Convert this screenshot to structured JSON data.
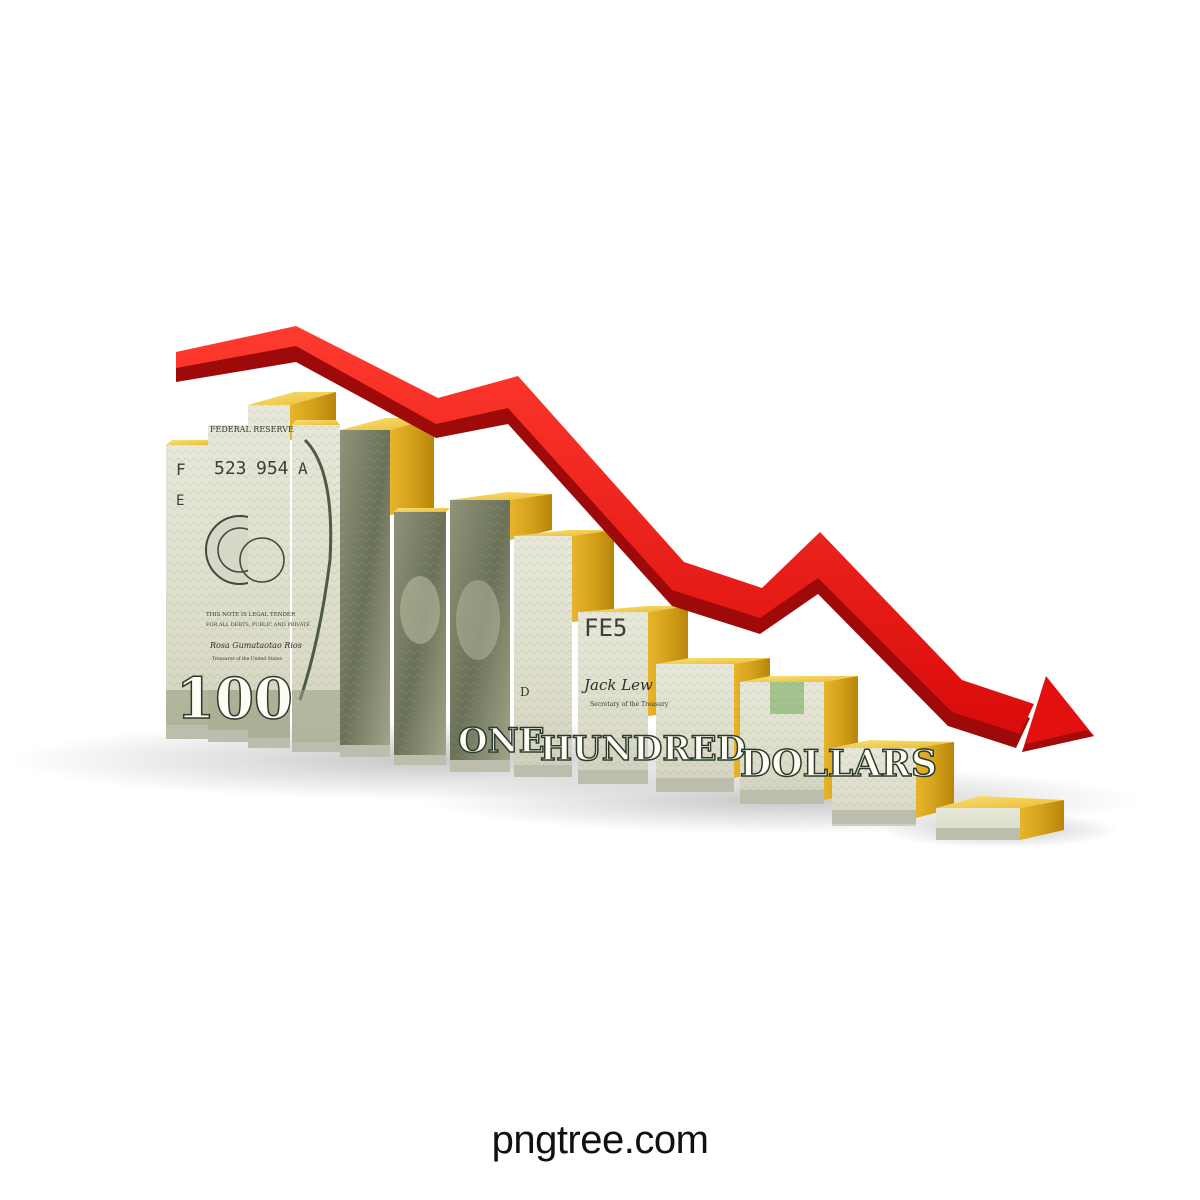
{
  "watermark": {
    "text": "pngtree.com"
  },
  "banknote": {
    "serial_fragments": [
      "F",
      "523",
      "954",
      "A",
      "FE5",
      "E"
    ],
    "reserve_text": "FEDERAL RESERVE",
    "tender_lines": [
      "THIS NOTE IS LEGAL TENDER",
      "FOR ALL DEBTS, PUBLIC AND PRIVATE"
    ],
    "denomination": "100",
    "words": [
      "ONE",
      "HUNDRED",
      "DOLLARS"
    ],
    "signatures": [
      "Rosa Gumataotao Rios",
      "Jack Lew"
    ],
    "secretary_label": "Secretary of the Treasury",
    "treasurer_label": "Treasurer of the United States",
    "district_letter": "D"
  },
  "colors": {
    "arrow": "#e01010",
    "arrow_shadow": "#a30a0a",
    "gold_top": "#f2cf4a",
    "gold_side": "#c9960f",
    "bill_base": "#e4e4d6",
    "bill_ink": "#44543f"
  },
  "scene": {
    "bar_count": 13,
    "trend": "declining",
    "arrow_direction": "down-right"
  }
}
